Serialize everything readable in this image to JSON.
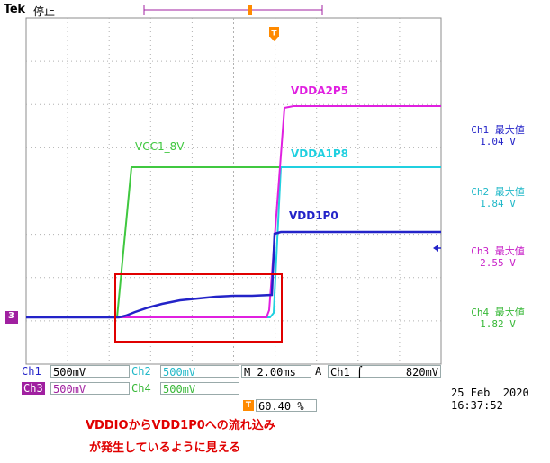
{
  "brand": "Tek",
  "status": "停止",
  "colors": {
    "ch1": "#2323c8",
    "ch2": "#20d0e0",
    "ch3": "#e020e0",
    "ch4": "#40c840",
    "trigger": "#ff8a00",
    "annotation": "#e00000"
  },
  "waveform_labels": {
    "vcc": "VCC1_8V",
    "vdda2p5": "VDDA2P5",
    "vdda1p8": "VDDA1P8",
    "vdd1p0": "VDD1P0"
  },
  "measurements": [
    {
      "label": "Ch1 最大値",
      "value": "1.04 V"
    },
    {
      "label": "Ch2 最大値",
      "value": "1.84 V"
    },
    {
      "label": "Ch3 最大値",
      "value": "2.55 V"
    },
    {
      "label": "Ch4 最大値",
      "value": "1.82 V"
    }
  ],
  "settings": {
    "ch1": "Ch1",
    "ch1_scale": "500mV",
    "ch2": "Ch2",
    "ch2_scale": "500mV",
    "ch3": "Ch3",
    "ch3_scale": "500mV",
    "ch4": "Ch4",
    "ch4_scale": "500mV",
    "timebase": "M 2.00ms",
    "trig_mode": "A",
    "trig_src": "Ch1",
    "trig_slope": "⌠",
    "trig_level": "820mV",
    "trig_pos": "60.40 %",
    "trig_marker": "T",
    "ch3_ground_marker": "3"
  },
  "date": "25 Feb  2020",
  "time": "16:37:52",
  "annotation": {
    "line1": "VDDIOからVDD1P0への流れ込み",
    "line2": "が発生しているように見える"
  }
}
